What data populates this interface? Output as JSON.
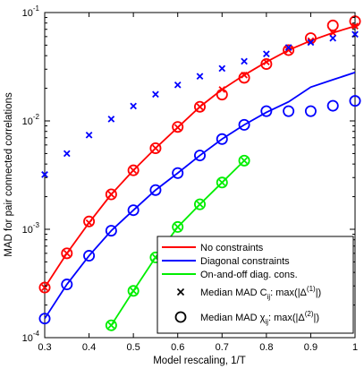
{
  "chart_data": {
    "type": "line",
    "title": "",
    "xlabel": "Model rescaling, 1/T",
    "ylabel": "MAD for pair connected correlations",
    "xlim": [
      0.3,
      1.0
    ],
    "ylim_log10": [
      -4,
      -1
    ],
    "y_scale": "log",
    "grid": false,
    "legend_position": "bottom-right",
    "x_ticks": [
      "0.3",
      "0.4",
      "0.5",
      "0.6",
      "0.7",
      "0.8",
      "0.9",
      "1"
    ],
    "y_ticks": [
      {
        "base": "10",
        "exp": "-4"
      },
      {
        "base": "10",
        "exp": "-3"
      },
      {
        "base": "10",
        "exp": "-2"
      },
      {
        "base": "10",
        "exp": "-1"
      }
    ],
    "series": [
      {
        "name": "No constraints",
        "color": "#ff0000",
        "x": [
          0.3,
          0.35,
          0.4,
          0.45,
          0.5,
          0.55,
          0.6,
          0.65,
          0.7,
          0.75,
          0.8,
          0.85,
          0.9,
          0.95,
          1.0
        ],
        "line_y": [
          0.00029,
          0.0006,
          0.00115,
          0.0021,
          0.0035,
          0.0056,
          0.0087,
          0.0135,
          0.0195,
          0.0265,
          0.035,
          0.045,
          0.055,
          0.065,
          0.075
        ],
        "x_markers": [
          0.3,
          0.35,
          0.4,
          0.45,
          0.5,
          0.55,
          0.6,
          0.65,
          0.7,
          0.75,
          0.8,
          0.85,
          0.9,
          0.95,
          1.0
        ],
        "x_marker_values": [
          0.00029,
          0.0006,
          0.00115,
          0.0021,
          0.0035,
          0.0056,
          0.0087,
          0.0135,
          0.0195,
          0.0265,
          0.035,
          0.045,
          0.055,
          0.065,
          0.075
        ],
        "o_markers": [
          0.3,
          0.35,
          0.4,
          0.45,
          0.5,
          0.55,
          0.6,
          0.65,
          0.7,
          0.75,
          0.8,
          0.85,
          0.9,
          0.95,
          1.0
        ],
        "o_marker_values": [
          0.00029,
          0.0006,
          0.00118,
          0.0021,
          0.0035,
          0.0056,
          0.0088,
          0.0135,
          0.0175,
          0.025,
          0.0335,
          0.045,
          0.058,
          0.076,
          0.083
        ]
      },
      {
        "name": "Diagonal constraints",
        "color": "#0000ff",
        "x": [
          0.3,
          0.35,
          0.4,
          0.45,
          0.5,
          0.55,
          0.6,
          0.65,
          0.7,
          0.75,
          0.8,
          0.85,
          0.9,
          0.95,
          1.0
        ],
        "line_y": [
          0.00015,
          0.00031,
          0.00057,
          0.00097,
          0.0015,
          0.0023,
          0.0033,
          0.0048,
          0.0068,
          0.0092,
          0.012,
          0.015,
          0.0205,
          0.024,
          0.028
        ],
        "x_markers": [
          0.3,
          0.35,
          0.4,
          0.45,
          0.5,
          0.55,
          0.6,
          0.65,
          0.7,
          0.75,
          0.8,
          0.85,
          0.9,
          0.95,
          1.0
        ],
        "x_marker_values": [
          0.0032,
          0.005,
          0.0074,
          0.0104,
          0.0137,
          0.0176,
          0.0215,
          0.0258,
          0.0305,
          0.0355,
          0.0415,
          0.0475,
          0.053,
          0.058,
          0.063
        ],
        "o_markers": [
          0.3,
          0.35,
          0.4,
          0.45,
          0.5,
          0.55,
          0.6,
          0.65,
          0.7,
          0.75,
          0.8,
          0.85,
          0.9,
          0.95,
          1.0
        ],
        "o_marker_values": [
          0.00015,
          0.00031,
          0.00057,
          0.00097,
          0.0015,
          0.0023,
          0.0033,
          0.0048,
          0.0068,
          0.0092,
          0.0123,
          0.0123,
          0.0123,
          0.0138,
          0.0153
        ]
      },
      {
        "name": "On-and-off diag. cons.",
        "color": "#00ee00",
        "x": [
          0.45,
          0.5,
          0.55,
          0.6,
          0.65,
          0.7,
          0.75
        ],
        "line_y": [
          0.00013,
          0.00027,
          0.00055,
          0.00105,
          0.0017,
          0.0027,
          0.0043
        ],
        "x_markers": [
          0.45,
          0.5,
          0.55,
          0.6,
          0.65,
          0.7,
          0.75
        ],
        "x_marker_values": [
          0.00013,
          0.00027,
          0.00055,
          0.00105,
          0.0017,
          0.0027,
          0.0043
        ],
        "o_markers": [
          0.45,
          0.5,
          0.55,
          0.6,
          0.65,
          0.7,
          0.75
        ],
        "o_marker_values": [
          0.00013,
          0.00027,
          0.00055,
          0.00105,
          0.0017,
          0.0027,
          0.0043
        ]
      }
    ],
    "marker_legend": [
      {
        "marker": "x",
        "label": "Median MAD C",
        "sub": "ij",
        "tail": ": max(|Δ",
        "sup": "(1)",
        "end": "|)"
      },
      {
        "marker": "o",
        "label": "Median MAD χ",
        "sub": "ij",
        "tail": ": max(|Δ",
        "sup": "(2)",
        "end": "|)"
      }
    ]
  }
}
